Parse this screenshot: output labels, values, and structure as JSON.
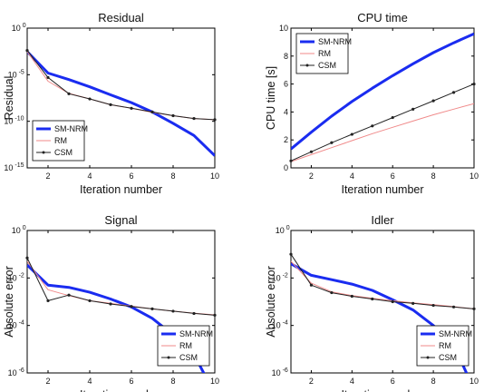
{
  "chart_data": [
    {
      "type": "line",
      "title": "Residual",
      "xlabel": "Iteration number",
      "ylabel": "Residual",
      "yscale": "log",
      "xlim": [
        1,
        10
      ],
      "ylim": [
        1e-15,
        1
      ],
      "xticks": [
        2,
        4,
        6,
        8,
        10
      ],
      "xtick_labels": [
        "2",
        "4",
        "6",
        "8",
        "10"
      ],
      "yticks": [
        1e-15,
        1e-10,
        1e-05,
        1
      ],
      "ytick_labels": [
        [
          "10",
          "-15"
        ],
        [
          "10",
          "-10"
        ],
        [
          "10",
          "-5"
        ],
        [
          "10",
          "0"
        ]
      ],
      "legend": "bottom-left",
      "series": [
        {
          "name": "SM-NRM",
          "color": "#1a2cf0",
          "width": 3,
          "markers": false,
          "x": [
            1,
            2,
            3,
            4,
            5,
            6,
            7,
            8,
            9,
            10
          ],
          "y": [
            0.003,
            1.5e-05,
            3e-06,
            5e-07,
            7e-08,
            1e-08,
            1e-09,
            6e-11,
            3e-12,
            2e-14
          ]
        },
        {
          "name": "RM",
          "color": "#f08a8a",
          "width": 1,
          "markers": false,
          "x": [
            1,
            2,
            3,
            4,
            5,
            6,
            7,
            8,
            9,
            10
          ],
          "y": [
            0.003,
            2e-06,
            1e-07,
            2.5e-08,
            6e-09,
            2.5e-09,
            9e-10,
            4e-10,
            2e-10,
            1.5e-10
          ]
        },
        {
          "name": "CSM",
          "color": "#222222",
          "width": 1,
          "markers": true,
          "x": [
            1,
            2,
            3,
            4,
            5,
            6,
            7,
            8,
            9,
            10
          ],
          "y": [
            0.004,
            5e-06,
            9e-08,
            2.5e-08,
            6e-09,
            2.5e-09,
            1e-09,
            4e-10,
            2e-10,
            1.5e-10
          ]
        }
      ]
    },
    {
      "type": "line",
      "title": "CPU time",
      "xlabel": "Iteration number",
      "ylabel": "CPU time [s]",
      "yscale": "linear",
      "xlim": [
        1,
        10
      ],
      "ylim": [
        0,
        10
      ],
      "xticks": [
        2,
        4,
        6,
        8,
        10
      ],
      "xtick_labels": [
        "2",
        "4",
        "6",
        "8",
        "10"
      ],
      "yticks": [
        0,
        2,
        4,
        6,
        8,
        10
      ],
      "ytick_labels": [
        [
          "0",
          ""
        ],
        [
          "2",
          ""
        ],
        [
          "4",
          ""
        ],
        [
          "6",
          ""
        ],
        [
          "8",
          ""
        ],
        [
          "10",
          ""
        ]
      ],
      "legend": "top-left",
      "series": [
        {
          "name": "SM-NRM",
          "color": "#1a2cf0",
          "width": 3,
          "markers": false,
          "x": [
            1,
            2,
            3,
            4,
            5,
            6,
            7,
            8,
            9,
            10
          ],
          "y": [
            1.35,
            2.55,
            3.7,
            4.75,
            5.7,
            6.6,
            7.45,
            8.25,
            8.95,
            9.6
          ]
        },
        {
          "name": "RM",
          "color": "#f08a8a",
          "width": 1,
          "markers": false,
          "x": [
            1,
            2,
            3,
            4,
            5,
            6,
            7,
            8,
            9,
            10
          ],
          "y": [
            0.45,
            0.95,
            1.45,
            1.95,
            2.45,
            2.9,
            3.35,
            3.8,
            4.2,
            4.6
          ]
        },
        {
          "name": "CSM",
          "color": "#222222",
          "width": 1,
          "markers": true,
          "x": [
            1,
            2,
            3,
            4,
            5,
            6,
            7,
            8,
            9,
            10
          ],
          "y": [
            0.5,
            1.15,
            1.8,
            2.4,
            3.0,
            3.6,
            4.2,
            4.8,
            5.4,
            6.0
          ]
        }
      ]
    },
    {
      "type": "line",
      "title": "Signal",
      "xlabel": "Iteration number",
      "ylabel": "Absolute error",
      "yscale": "log",
      "xlim": [
        1,
        10
      ],
      "ylim": [
        1e-06,
        1
      ],
      "xticks": [
        2,
        4,
        6,
        8,
        10
      ],
      "xtick_labels": [
        "2",
        "4",
        "6",
        "8",
        "10"
      ],
      "yticks": [
        1e-06,
        0.0001,
        0.01,
        1
      ],
      "ytick_labels": [
        [
          "10",
          "-6"
        ],
        [
          "10",
          "-4"
        ],
        [
          "10",
          "-2"
        ],
        [
          "10",
          "0"
        ]
      ],
      "legend": "bottom-right",
      "series": [
        {
          "name": "SM-NRM",
          "color": "#1a2cf0",
          "width": 3,
          "markers": false,
          "x": [
            1,
            2,
            3,
            4,
            5,
            6,
            7,
            8,
            9,
            10
          ],
          "y": [
            0.035,
            0.005,
            0.004,
            0.0025,
            0.0013,
            0.0006,
            0.0002,
            4e-05,
            6e-06,
            1.3e-07
          ]
        },
        {
          "name": "RM",
          "color": "#f08a8a",
          "width": 1,
          "markers": false,
          "x": [
            1,
            2,
            3,
            4,
            5,
            6,
            7,
            8,
            9,
            10
          ],
          "y": [
            0.05,
            0.0032,
            0.0018,
            0.0011,
            0.00085,
            0.00065,
            0.0005,
            0.0004,
            0.00033,
            0.00028
          ]
        },
        {
          "name": "CSM",
          "color": "#222222",
          "width": 1,
          "markers": true,
          "x": [
            1,
            2,
            3,
            4,
            5,
            6,
            7,
            8,
            9,
            10
          ],
          "y": [
            0.07,
            0.0011,
            0.0019,
            0.0011,
            0.0008,
            0.00063,
            0.0005,
            0.0004,
            0.00032,
            0.00027
          ]
        }
      ]
    },
    {
      "type": "line",
      "title": "Idler",
      "xlabel": "Iteration number",
      "ylabel": "Absolute error",
      "yscale": "log",
      "xlim": [
        1,
        10
      ],
      "ylim": [
        1e-06,
        1
      ],
      "xticks": [
        2,
        4,
        6,
        8,
        10
      ],
      "xtick_labels": [
        "2",
        "4",
        "6",
        "8",
        "10"
      ],
      "yticks": [
        1e-06,
        0.0001,
        0.01,
        1
      ],
      "ytick_labels": [
        [
          "10",
          "-6"
        ],
        [
          "10",
          "-4"
        ],
        [
          "10",
          "-2"
        ],
        [
          "10",
          "0"
        ]
      ],
      "legend": "bottom-right",
      "series": [
        {
          "name": "SM-NRM",
          "color": "#1a2cf0",
          "width": 3,
          "markers": false,
          "x": [
            1,
            2,
            3,
            4,
            5,
            6,
            7,
            8,
            9,
            10
          ],
          "y": [
            0.04,
            0.013,
            0.0085,
            0.0055,
            0.003,
            0.0012,
            0.00045,
            0.0001,
            1.5e-05,
            2e-07
          ]
        },
        {
          "name": "RM",
          "color": "#f08a8a",
          "width": 1,
          "markers": false,
          "x": [
            1,
            2,
            3,
            4,
            5,
            6,
            7,
            8,
            9,
            10
          ],
          "y": [
            0.05,
            0.006,
            0.0026,
            0.0018,
            0.0014,
            0.0011,
            0.0009,
            0.00075,
            0.00062,
            0.0005
          ]
        },
        {
          "name": "CSM",
          "color": "#222222",
          "width": 1,
          "markers": true,
          "x": [
            1,
            2,
            3,
            4,
            5,
            6,
            7,
            8,
            9,
            10
          ],
          "y": [
            0.1,
            0.005,
            0.0024,
            0.0017,
            0.0013,
            0.001,
            0.00085,
            0.0007,
            0.0006,
            0.0005
          ]
        }
      ]
    }
  ]
}
